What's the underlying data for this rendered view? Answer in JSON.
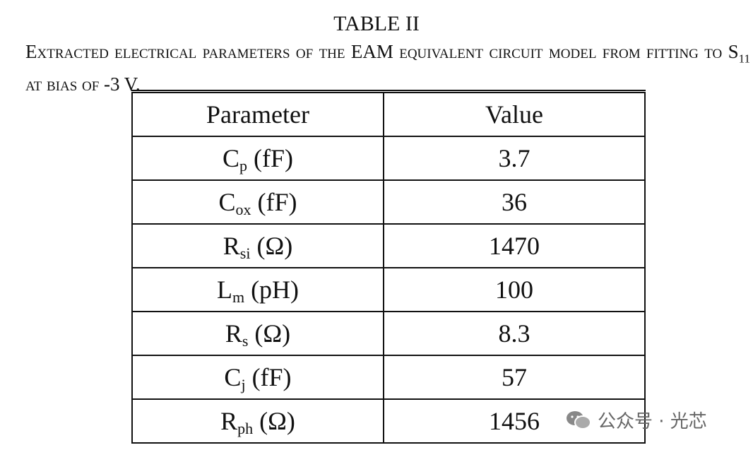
{
  "caption": {
    "label": "TABLE II",
    "text_before_sub": "Extracted electrical parameters of the EAM equivalent circuit model from fitting to S",
    "sub": "11",
    "text_after_sub": "at bias of -3 V."
  },
  "table": {
    "header": [
      "Parameter",
      "Value"
    ],
    "rows": [
      [
        {
          "base": "C",
          "sub": "p",
          "unit": "(fF)"
        },
        3.7
      ],
      [
        {
          "base": "C",
          "sub": "ox",
          "unit": "(fF)"
        },
        36
      ],
      [
        {
          "base": "R",
          "sub": "si",
          "unit": "(Ω)"
        },
        1470
      ],
      [
        {
          "base": "L",
          "sub": "m",
          "unit": "(pH)"
        },
        100
      ],
      [
        {
          "base": "R",
          "sub": "s",
          "unit": "(Ω)"
        },
        8.3
      ],
      [
        {
          "base": "C",
          "sub": "j",
          "unit": "(fF)"
        },
        57
      ],
      [
        {
          "base": "R",
          "sub": "ph",
          "unit": "(Ω)"
        },
        1456
      ]
    ]
  },
  "watermark": "公众号 · 光芯"
}
